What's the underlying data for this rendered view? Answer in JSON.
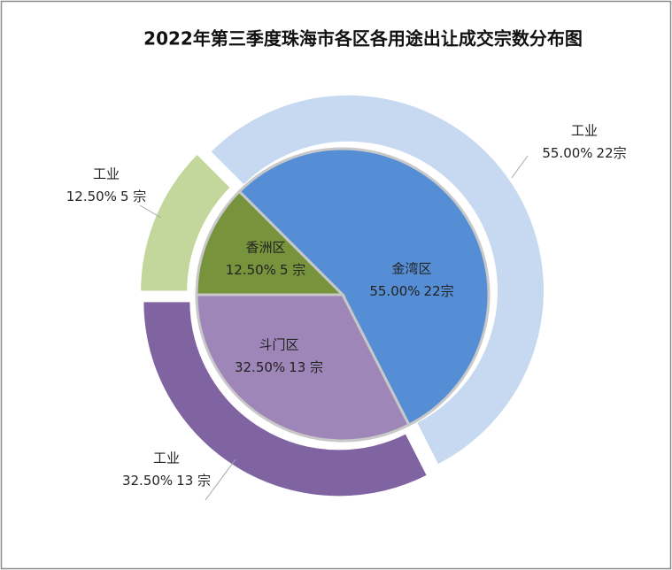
{
  "chart_data": {
    "type": "nested-pie",
    "title": "2022年第三季度珠海市各区各用途出让成交宗数分布图",
    "rings": [
      {
        "categories": [
          "金湾区",
          "斗门区",
          "香洲区"
        ],
        "colors": [
          "#558ed5",
          "#9e86b8",
          "#77933c"
        ],
        "values": [
          55,
          32.5,
          12.5
        ],
        "value_labels": [
          "55.00%",
          "32.50%",
          "12.50%"
        ],
        "counts": [
          22,
          13,
          5
        ],
        "count_labels": [
          "22宗",
          "13 宗",
          "5 宗"
        ]
      },
      {
        "categories": [
          "工业",
          "工业",
          "工业"
        ],
        "colors": [
          "#c6d9f1",
          "#8064a2",
          "#c3d69b"
        ],
        "values": [
          55,
          32.5,
          12.5
        ],
        "value_labels": [
          "55.00%",
          "32.50%",
          "12.50%"
        ],
        "counts": [
          22,
          13,
          5
        ],
        "count_labels": [
          "22宗",
          "13 宗",
          "5 宗"
        ]
      }
    ]
  }
}
